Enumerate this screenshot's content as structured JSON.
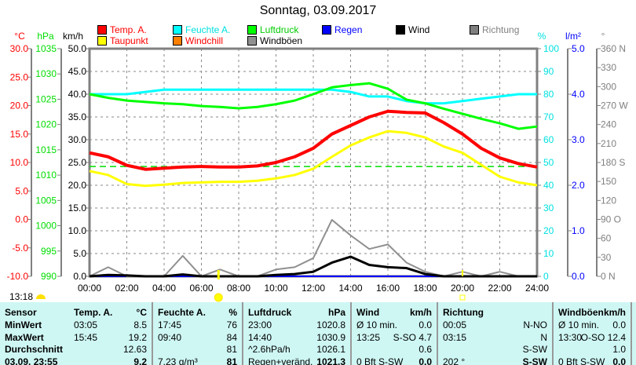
{
  "title": "Sonntag, 03.09.2017",
  "legend": [
    {
      "label": "Temp. A.",
      "color": "#ff0000",
      "text_color": "#ff0000"
    },
    {
      "label": "Feuchte A.",
      "color": "#00ffff",
      "text_color": "#00e0e0"
    },
    {
      "label": "Luftdruck",
      "color": "#00ff00",
      "text_color": "#00cc00"
    },
    {
      "label": "Regen",
      "color": "#0000ff",
      "text_color": "#0000ff"
    },
    {
      "label": "Wind",
      "color": "#000000",
      "text_color": "#000000"
    },
    {
      "label": "Richtung",
      "color": "#808080",
      "text_color": "#808080"
    },
    {
      "label": "Taupunkt",
      "color": "#ffff00",
      "text_color": "#ff0000"
    },
    {
      "label": "Windchill",
      "color": "#ff8000",
      "text_color": "#ff0000"
    },
    {
      "label": "Windböen",
      "color": "#909090",
      "text_color": "#000000"
    }
  ],
  "current_time": "13:18",
  "chart_data": {
    "type": "line",
    "title": "Sonntag, 03.09.2017",
    "x_ticks": [
      "00:00",
      "02:00",
      "04:00",
      "06:00",
      "08:00",
      "10:00",
      "12:00",
      "14:00",
      "16:00",
      "18:00",
      "20:00",
      "22:00",
      "24:00"
    ],
    "xlim": [
      0,
      24
    ],
    "axes": {
      "temp": {
        "unit": "°C",
        "ticks": [
          "30.0",
          "25.0",
          "20.0",
          "15.0",
          "10.0",
          "5.0",
          "0.0",
          "-5.0",
          "-10.0"
        ],
        "range": [
          -10,
          30
        ],
        "color": "#ff0000"
      },
      "pressure": {
        "unit": "hPa",
        "ticks": [
          "1035",
          "1030",
          "1025",
          "1020",
          "1015",
          "1010",
          "1005",
          "1000",
          "995",
          "990"
        ],
        "range": [
          990,
          1040
        ],
        "color": "#00dd00"
      },
      "wind": {
        "unit": "km/h",
        "ticks": [
          "50.0",
          "45.0",
          "40.0",
          "35.0",
          "30.0",
          "25.0",
          "20.0",
          "15.0",
          "10.0",
          "5.0",
          "0.0"
        ],
        "range": [
          0,
          50
        ],
        "color": "#000000"
      },
      "humidity": {
        "unit": "%",
        "ticks": [
          "100",
          "90",
          "80",
          "70",
          "60",
          "50",
          "40",
          "30",
          "20",
          "10",
          "0"
        ],
        "range": [
          0,
          100
        ],
        "color": "#00e0e0"
      },
      "rain": {
        "unit": "l/m²",
        "ticks": [
          "5.0",
          "4.0",
          "3.0",
          "2.0",
          "1.0",
          "0.0"
        ],
        "range": [
          0,
          5
        ],
        "color": "#0000ff"
      },
      "direction": {
        "unit": "°",
        "ticks": [
          "360 N",
          "330",
          "300",
          "270 W",
          "240",
          "210",
          "180 S",
          "150",
          "120",
          "90  O",
          "60",
          "30",
          "0   N"
        ],
        "range": [
          0,
          360
        ],
        "color": "#808080"
      }
    },
    "x": [
      0,
      1,
      2,
      3,
      4,
      5,
      6,
      7,
      8,
      9,
      10,
      11,
      12,
      13,
      14,
      15,
      16,
      17,
      18,
      19,
      20,
      21,
      22,
      23,
      24
    ],
    "series": [
      {
        "name": "Temp. A.",
        "axis": "temp",
        "color": "#ff0000",
        "values": [
          11.7,
          11,
          9.5,
          8.8,
          9,
          9.2,
          9.3,
          9.2,
          9.2,
          9.4,
          10,
          11,
          12.5,
          15,
          16.5,
          18,
          19,
          18.8,
          18.7,
          17,
          15,
          12.5,
          10.8,
          9.8,
          9.2
        ]
      },
      {
        "name": "Taupunkt",
        "axis": "temp",
        "color": "#ffff00",
        "values": [
          8.5,
          7.8,
          6.2,
          5.9,
          6.1,
          6.4,
          6.5,
          6.6,
          6.6,
          6.8,
          7.2,
          7.8,
          8.9,
          11,
          13,
          14.4,
          15.5,
          15.2,
          14.4,
          12.8,
          11.7,
          9.6,
          7.5,
          6.5,
          6
        ]
      },
      {
        "name": "Feuchte A.",
        "axis": "humidity",
        "color": "#00ffff",
        "values": [
          80,
          80,
          80,
          81,
          82,
          82,
          82,
          82,
          82,
          82,
          82,
          82,
          82,
          82,
          81,
          79,
          79,
          77,
          76,
          76,
          77,
          78,
          79,
          80,
          80
        ]
      },
      {
        "name": "Luftdruck",
        "axis": "pressure",
        "color": "#00ff00",
        "values": [
          1030,
          1029.2,
          1028.6,
          1028.3,
          1028,
          1027.8,
          1027.4,
          1027.2,
          1026.9,
          1027.2,
          1027.8,
          1028.6,
          1030,
          1031.5,
          1032,
          1032.4,
          1031.2,
          1028.8,
          1028,
          1026.8,
          1025.7,
          1024.6,
          1023.6,
          1022.4,
          1022.9
        ]
      },
      {
        "name": "Regen",
        "axis": "rain",
        "color": "#0000ff",
        "values": [
          0,
          0,
          0,
          0,
          0,
          0,
          0,
          0,
          0,
          0,
          0,
          0,
          0,
          0,
          0,
          0,
          0,
          0,
          0,
          0,
          0,
          0,
          0,
          0,
          0
        ]
      },
      {
        "name": "Windböen",
        "axis": "wind",
        "color": "#909090",
        "values": [
          0,
          2,
          0,
          0,
          0,
          4.5,
          0,
          1.5,
          0,
          0,
          1.5,
          2,
          4,
          12.4,
          9,
          6,
          7,
          3,
          1,
          0,
          1,
          0,
          1,
          0,
          0
        ]
      },
      {
        "name": "Wind",
        "axis": "wind",
        "color": "#000000",
        "values": [
          0,
          0.3,
          0.2,
          0,
          0,
          0.4,
          0,
          0,
          0,
          0,
          0.3,
          0.5,
          1,
          3,
          4.3,
          2.5,
          2,
          1.8,
          0.5,
          0,
          0,
          0,
          0,
          0,
          0
        ]
      }
    ],
    "reference_line": {
      "axis": "temp",
      "value": 9.3,
      "color": "#00dd00"
    },
    "sunrise": "06:55",
    "sunset": "20:00"
  },
  "table": {
    "columns": [
      {
        "header": "Sensor",
        "unit": "",
        "rows": [
          "MinWert",
          "MaxWert",
          "Durchschnitt",
          "03.09. 23:55"
        ]
      },
      {
        "header": "Temp. A.",
        "unit": "°C",
        "rows": [
          [
            "03:05",
            "8.5"
          ],
          [
            "15:45",
            "19.2"
          ],
          [
            "",
            "12.63"
          ],
          [
            "",
            "9.2"
          ]
        ]
      },
      {
        "header": "Feuchte A.",
        "unit": "%",
        "rows": [
          [
            "17:45",
            "76"
          ],
          [
            "09:40",
            "84"
          ],
          [
            "",
            "81"
          ],
          [
            "7.23 g/m³",
            "81"
          ]
        ]
      },
      {
        "header": "Luftdruck",
        "unit": "hPa",
        "rows": [
          [
            "23:00",
            "1020.8"
          ],
          [
            "14:40",
            "1030.9"
          ],
          [
            "^2.6hPa/h",
            "1026.1"
          ],
          [
            "Regen+veränd.",
            "1021.3"
          ]
        ]
      },
      {
        "header": "Wind",
        "unit": "km/h",
        "rows": [
          [
            "Ø 10 min.",
            "0.0"
          ],
          [
            "13:25",
            "S-SO 4.7"
          ],
          [
            "",
            "0.6"
          ],
          [
            "0 Bft S-SW",
            "0.0"
          ]
        ]
      },
      {
        "header": "Richtung",
        "unit": "",
        "rows": [
          [
            "00:05",
            "N-NO"
          ],
          [
            "03:15",
            "N"
          ],
          [
            "",
            "S-SW"
          ],
          [
            "202 °",
            "S-SW"
          ]
        ]
      },
      {
        "header": "Windböen",
        "unit": "km/h",
        "rows": [
          [
            "Ø 10 min.",
            "0.0"
          ],
          [
            "13:30",
            "O-SO 12.4"
          ],
          [
            "",
            "1.0"
          ],
          [
            "0 Bft S-SW",
            "0.0"
          ]
        ]
      }
    ]
  }
}
